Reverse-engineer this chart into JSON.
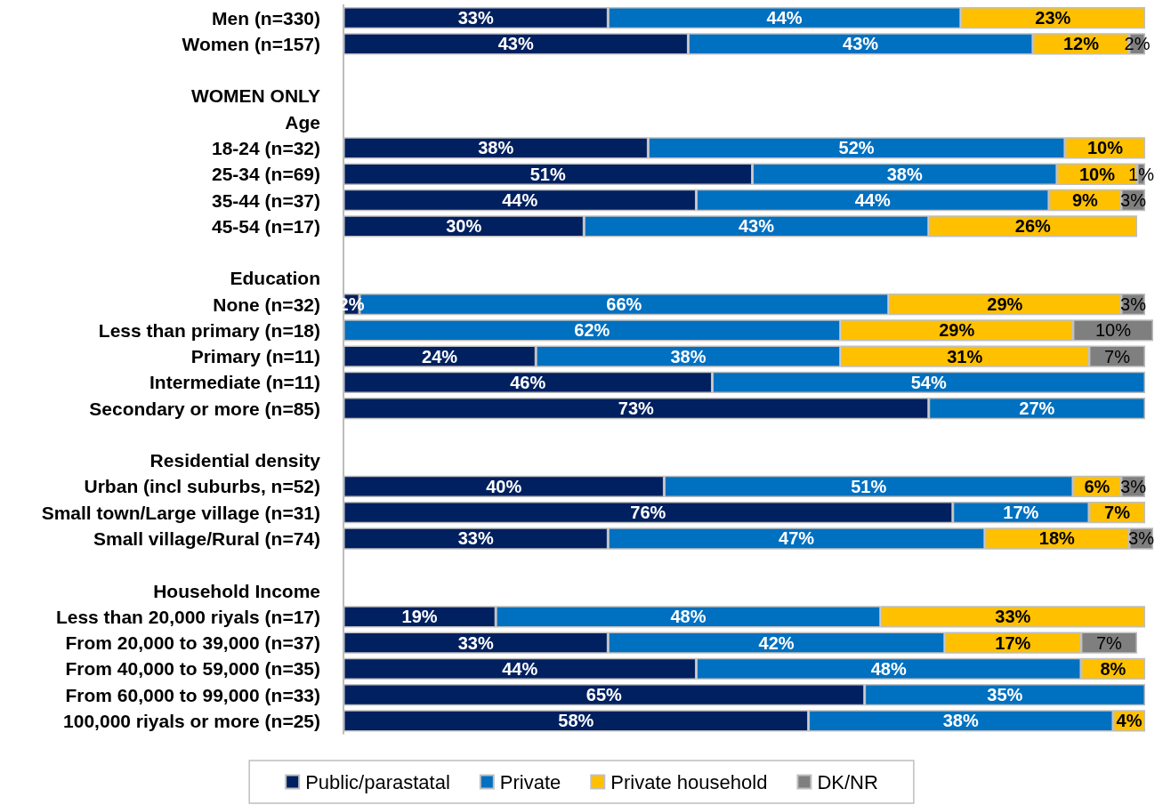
{
  "chart_data": {
    "type": "bar",
    "orientation": "horizontal",
    "stacked": true,
    "legend": "bottom",
    "tick_labels": "y",
    "xlim": [
      0,
      101
    ],
    "categories": [
      "Men (n=330)",
      "Women (n=157)",
      null,
      "WOMEN ONLY",
      "Age",
      "18-24 (n=32)",
      "25-34 (n=69)",
      "35-44 (n=37)",
      "45-54 (n=17)",
      null,
      "Education",
      "None (n=32)",
      "Less than primary (n=18)",
      "Primary (n=11)",
      "Intermediate (n=11)",
      "Secondary or more (n=85)",
      null,
      "Residential density",
      "Urban (incl suburbs, n=52)",
      "Small town/Large village (n=31)",
      "Small village/Rural (n=74)",
      null,
      "Household Income",
      "Less than 20,000 riyals (n=17)",
      "From 20,000 to 39,000 (n=37)",
      "From 40,000 to 59,000 (n=35)",
      "From 60,000 to 99,000 (n=33)",
      "100,000 riyals or more (n=25)"
    ],
    "series": [
      {
        "name": "Public/parastatal",
        "color": "#002060",
        "values": [
          33,
          43,
          null,
          null,
          null,
          38,
          51,
          44,
          30,
          null,
          null,
          2,
          null,
          24,
          46,
          73,
          null,
          null,
          40,
          76,
          33,
          null,
          null,
          19,
          33,
          44,
          65,
          58
        ],
        "value_labels": [
          "33%",
          "43%",
          null,
          null,
          null,
          "38%",
          "51%",
          "44%",
          "30%",
          null,
          null,
          "2%",
          null,
          "24%",
          "46%",
          "73%",
          null,
          null,
          "40%",
          "76%",
          "33%",
          null,
          null,
          "19%",
          "33%",
          "44%",
          "65%",
          "58%"
        ]
      },
      {
        "name": "Private",
        "color": "#0070c0",
        "values": [
          44,
          43,
          null,
          null,
          null,
          52,
          38,
          44,
          43,
          null,
          null,
          66,
          62,
          38,
          54,
          27,
          null,
          null,
          51,
          17,
          47,
          null,
          null,
          48,
          42,
          48,
          35,
          38
        ],
        "value_labels": [
          "44%",
          "43%",
          null,
          null,
          null,
          "52%",
          "38%",
          "44%",
          "43%",
          null,
          null,
          "66%",
          "62%",
          "38%",
          "54%",
          "27%",
          null,
          null,
          "51%",
          "17%",
          "47%",
          null,
          null,
          "48%",
          "42%",
          "48%",
          "35%",
          "38%"
        ]
      },
      {
        "name": "Private household",
        "color": "#ffc000",
        "values": [
          23,
          12,
          null,
          null,
          null,
          10,
          10,
          9,
          26,
          null,
          null,
          29,
          29,
          31,
          null,
          null,
          null,
          null,
          6,
          7,
          18,
          null,
          null,
          33,
          17,
          8,
          null,
          4
        ],
        "value_labels": [
          "23%",
          "12%",
          null,
          null,
          null,
          "10%",
          "10%",
          "9%",
          "26%",
          null,
          null,
          "29%",
          "29%",
          "31%",
          null,
          null,
          null,
          null,
          "6%",
          "7%",
          "18%",
          null,
          null,
          "33%",
          "17%",
          "8%",
          null,
          "4%"
        ]
      },
      {
        "name": "DK/NR",
        "color": "#7f7f7f",
        "values": [
          null,
          2,
          null,
          null,
          null,
          null,
          1,
          3,
          null,
          null,
          null,
          3,
          10,
          7,
          null,
          null,
          null,
          null,
          3,
          null,
          3,
          null,
          null,
          null,
          7,
          null,
          null,
          null
        ],
        "value_labels": [
          null,
          "2%",
          null,
          null,
          null,
          null,
          "1%",
          "3%",
          null,
          null,
          null,
          "3%",
          "10%",
          "7%",
          null,
          null,
          null,
          null,
          "3%",
          null,
          "3%",
          null,
          null,
          null,
          "7%",
          null,
          null,
          null
        ]
      }
    ]
  }
}
